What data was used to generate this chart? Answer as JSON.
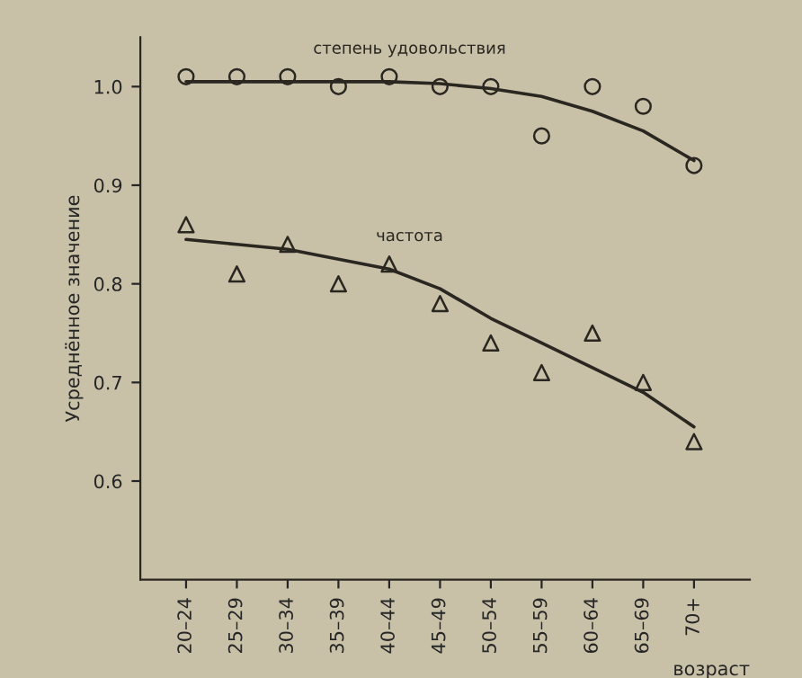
{
  "chart_data": {
    "type": "scatter",
    "ylabel": "Усреднённое значение",
    "xlabel": "возраст",
    "categories": [
      "20–24",
      "25–29",
      "30–34",
      "35–39",
      "40–44",
      "45–49",
      "50–54",
      "55–59",
      "60–64",
      "65–69",
      "70+"
    ],
    "ylim": [
      0.5,
      1.05
    ],
    "yticks": [
      0.6,
      0.7,
      0.8,
      0.9,
      {
        "value": 1.0,
        "label": "1.0"
      }
    ],
    "grid": false,
    "legend": false,
    "series": [
      {
        "name": "степень удовольствия",
        "marker": "circle",
        "color": "#2a2620",
        "values": [
          1.01,
          1.01,
          1.01,
          1.0,
          1.01,
          1.0,
          1.0,
          0.95,
          1.0,
          0.98,
          0.92
        ]
      },
      {
        "type": "line",
        "marker": "none",
        "color": "#2a2620",
        "values": [
          1.005,
          1.005,
          1.005,
          1.005,
          1.005,
          1.003,
          0.998,
          0.99,
          0.975,
          0.955,
          0.925
        ]
      },
      {
        "name": "частота",
        "marker": "triangle",
        "color": "#2a2620",
        "values": [
          0.86,
          0.81,
          0.84,
          0.8,
          0.82,
          0.78,
          0.74,
          0.71,
          0.75,
          0.7,
          0.64
        ]
      },
      {
        "type": "line",
        "marker": "none",
        "color": "#2a2620",
        "values": [
          0.845,
          0.84,
          0.835,
          0.825,
          0.815,
          0.795,
          0.765,
          0.74,
          0.715,
          0.69,
          0.655
        ]
      }
    ]
  }
}
